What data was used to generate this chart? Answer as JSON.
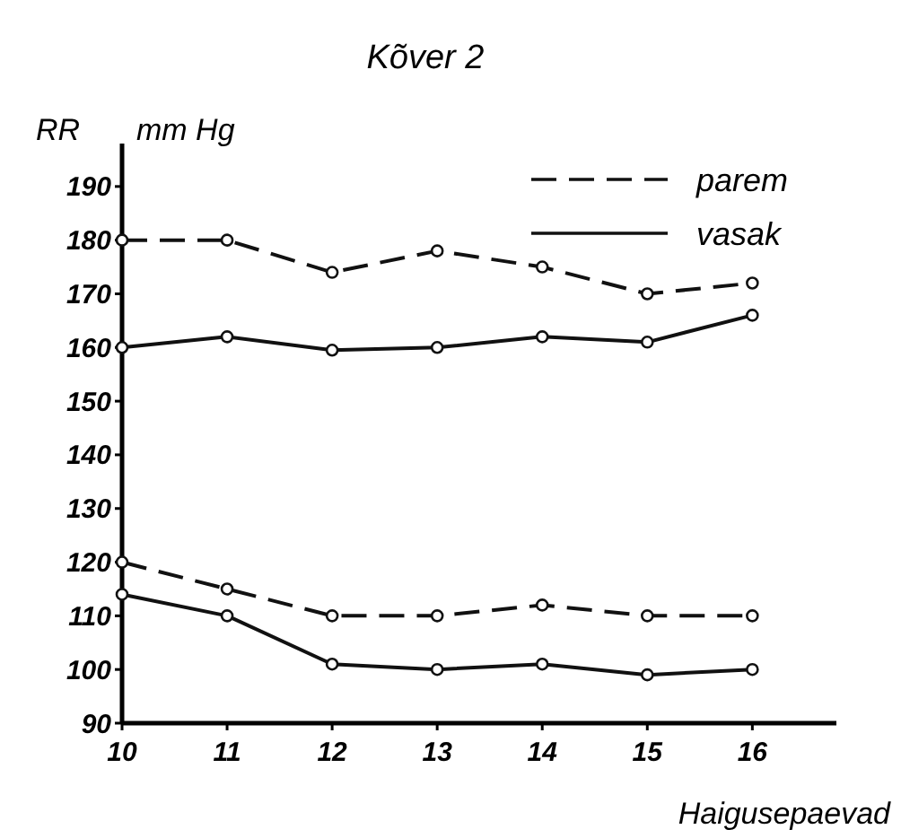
{
  "chart_data": {
    "type": "line",
    "title": "Kõver 2",
    "xlabel": "Haigusepaevad",
    "ylabel": "RR",
    "annotations": [
      "mm Hg"
    ],
    "x": [
      10,
      11,
      12,
      13,
      14,
      15,
      16
    ],
    "xlim": [
      10,
      16.8
    ],
    "xticks": [
      10,
      11,
      12,
      13,
      14,
      15,
      16
    ],
    "ylim": [
      90,
      198
    ],
    "yticks": [
      90,
      100,
      110,
      120,
      130,
      140,
      150,
      160,
      170,
      180,
      190
    ],
    "grid": false,
    "legend": "top right",
    "marker": "circle",
    "series": [
      {
        "name": "parem",
        "color": "#111111",
        "line_style": "dashed",
        "values": [
          180,
          180,
          174,
          178,
          175,
          170,
          172
        ]
      },
      {
        "name": "vasak",
        "color": "#111111",
        "line_style": "solid",
        "values": [
          160,
          162,
          159.5,
          160,
          162,
          161,
          166
        ]
      },
      {
        "color": "#111111",
        "line_style": "dashed",
        "values": [
          120,
          115,
          110,
          110,
          112,
          110,
          110
        ]
      },
      {
        "color": "#111111",
        "line_style": "solid",
        "values": [
          114,
          110,
          101,
          100,
          101,
          99,
          100
        ]
      }
    ]
  }
}
